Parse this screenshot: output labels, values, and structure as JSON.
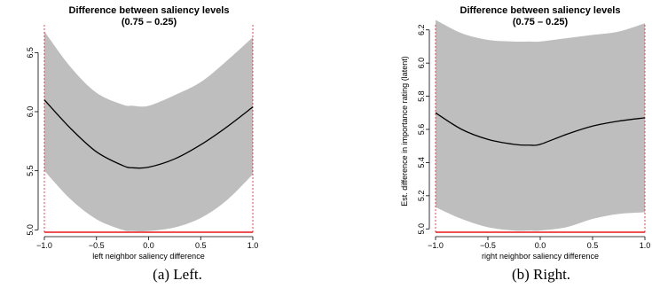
{
  "chart_data": [
    {
      "type": "line",
      "title": "Difference between saliency levels",
      "subtitle": "(0.75 – 0.25)",
      "xlabel": "left neighbor saliency difference",
      "ylabel": "",
      "xlim": [
        -1.0,
        1.0
      ],
      "ylim": [
        4.98,
        6.72
      ],
      "x_ticks": [
        "−1.0",
        "−0.5",
        "0.0",
        "0.5",
        "1.0"
      ],
      "y_ticks": [
        "5.0",
        "5.5",
        "6.0",
        "6.5"
      ],
      "grid": false,
      "series": [
        {
          "x": [
            -1.0,
            -0.75,
            -0.5,
            -0.25,
            -0.15,
            0.0,
            0.25,
            0.5,
            0.75,
            1.0
          ],
          "y": [
            6.1,
            5.86,
            5.66,
            5.545,
            5.525,
            5.53,
            5.6,
            5.72,
            5.87,
            6.04
          ],
          "lower": [
            5.5,
            5.26,
            5.09,
            5.0,
            4.99,
            4.99,
            5.02,
            5.1,
            5.25,
            5.47
          ],
          "upper": [
            6.68,
            6.38,
            6.16,
            6.06,
            6.05,
            6.05,
            6.14,
            6.25,
            6.43,
            6.63
          ]
        }
      ],
      "colors": {
        "line": "#000000",
        "band": "#bebebe",
        "limit": "#e8191b"
      }
    },
    {
      "type": "line",
      "title": "Difference between saliency levels",
      "subtitle": "(0.75 – 0.25)",
      "xlabel": "right neighbor saliency difference",
      "ylabel": "Est. difference in importance rating (latent)",
      "xlim": [
        -1.0,
        1.0
      ],
      "ylim": [
        4.98,
        6.22
      ],
      "x_ticks": [
        "−1.0",
        "−0.5",
        "0.0",
        "0.5",
        "1.0"
      ],
      "y_ticks": [
        "5.0",
        "5.2",
        "5.4",
        "5.6",
        "5.8",
        "6.0",
        "6.2"
      ],
      "grid": false,
      "series": [
        {
          "x": [
            -1.0,
            -0.75,
            -0.5,
            -0.25,
            -0.1,
            0.0,
            0.25,
            0.5,
            0.75,
            1.0
          ],
          "y": [
            5.7,
            5.6,
            5.54,
            5.51,
            5.505,
            5.51,
            5.57,
            5.62,
            5.65,
            5.67
          ],
          "lower": [
            5.13,
            5.06,
            5.01,
            4.99,
            4.99,
            4.99,
            5.01,
            5.06,
            5.09,
            5.1
          ],
          "upper": [
            6.26,
            6.18,
            6.14,
            6.13,
            6.13,
            6.13,
            6.15,
            6.17,
            6.19,
            6.24
          ]
        }
      ],
      "colors": {
        "line": "#000000",
        "band": "#bebebe",
        "limit": "#e8191b"
      }
    }
  ],
  "captions": {
    "left": "(a) Left.",
    "right": "(b) Right."
  }
}
